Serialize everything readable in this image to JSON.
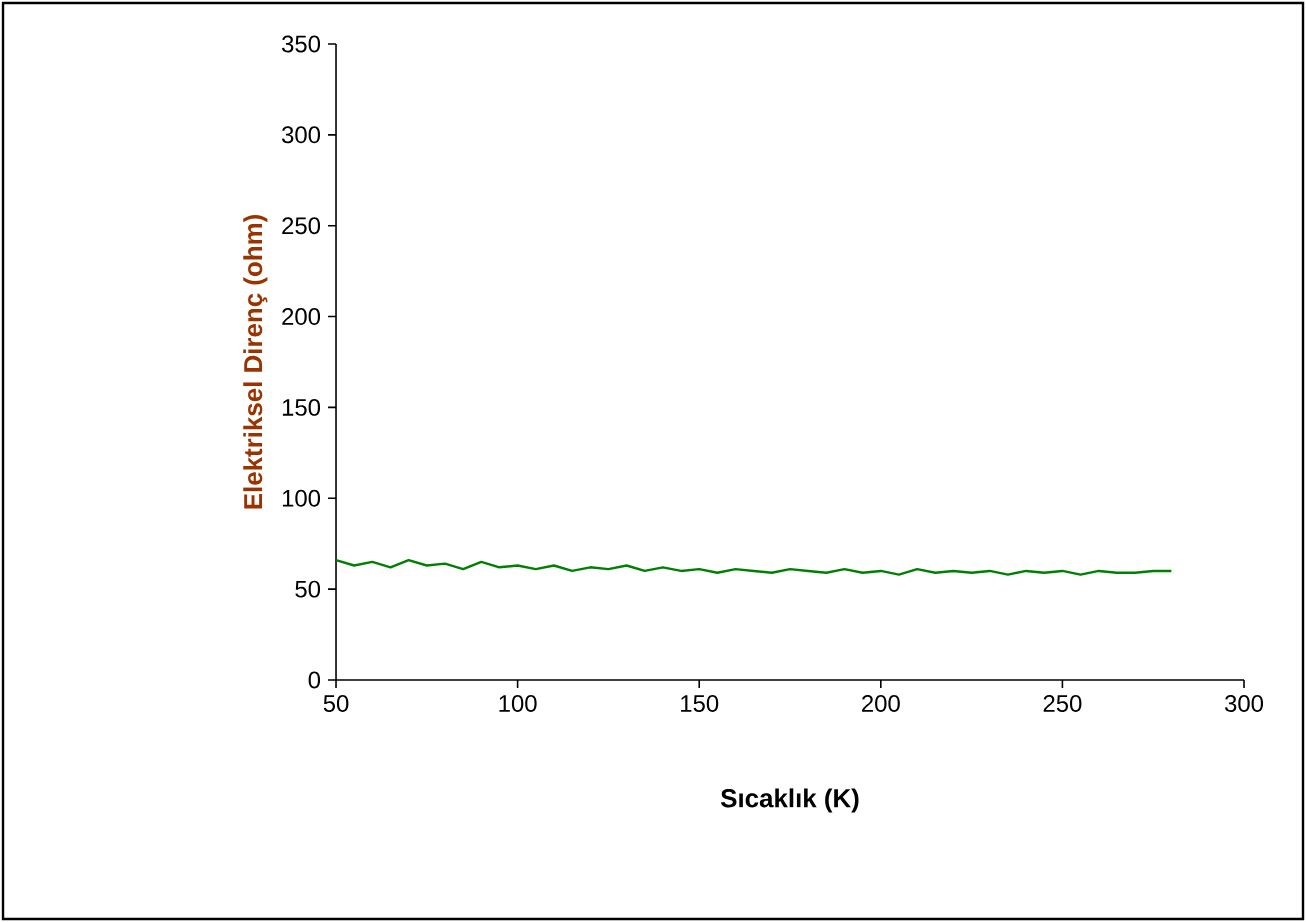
{
  "chart_data": {
    "type": "line",
    "xlabel": "Sıcaklık (K)",
    "ylabel": "Elektriksel Direnç (ohm)",
    "x": [
      50,
      55,
      60,
      65,
      70,
      75,
      80,
      85,
      90,
      95,
      100,
      105,
      110,
      115,
      120,
      125,
      130,
      135,
      140,
      145,
      150,
      155,
      160,
      165,
      170,
      175,
      180,
      185,
      190,
      195,
      200,
      205,
      210,
      215,
      220,
      225,
      230,
      235,
      240,
      245,
      250,
      255,
      260,
      265,
      270,
      275,
      280
    ],
    "series": [
      {
        "color": "#008000",
        "values": [
          66,
          63,
          65,
          62,
          66,
          63,
          64,
          61,
          65,
          62,
          63,
          61,
          63,
          60,
          62,
          61,
          63,
          60,
          62,
          60,
          61,
          59,
          61,
          60,
          59,
          61,
          60,
          59,
          61,
          59,
          60,
          58,
          61,
          59,
          60,
          59,
          60,
          58,
          60,
          59,
          60,
          58,
          60,
          59,
          59,
          60,
          60
        ]
      }
    ],
    "xlim": [
      50,
      300
    ],
    "xticks": [
      50,
      100,
      150,
      200,
      250,
      300
    ],
    "ylim": [
      0,
      350
    ],
    "yticks": [
      0,
      50,
      100,
      150,
      200,
      250,
      300,
      350
    ],
    "grid": false,
    "marker": "none",
    "line_style": "solid"
  }
}
